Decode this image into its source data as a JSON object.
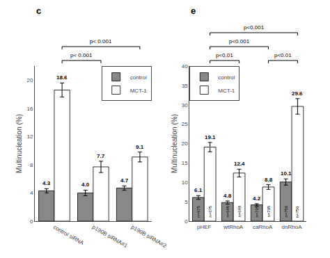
{
  "chart_data": [
    {
      "type": "bar",
      "title": "c",
      "categories": [
        "control siRNA",
        "p190B siRNA#1",
        "p190B siRNA#2"
      ],
      "series": [
        {
          "name": "control",
          "color": "#888888",
          "values": [
            4.3,
            4.0,
            4.7
          ],
          "value_labels": [
            "4.3",
            "4.0",
            "4.7"
          ],
          "errors": [
            0.3,
            0.4,
            0.3
          ]
        },
        {
          "name": "MCT-1",
          "color": "#ffffff",
          "values": [
            18.6,
            7.7,
            9.1
          ],
          "errors": [
            1.0,
            0.8,
            0.7
          ]
        }
      ],
      "ylabel": "Multinucleation (%)",
      "ylim": [
        0,
        22
      ],
      "yticks": [
        0,
        4,
        8,
        12,
        16,
        20
      ],
      "grid": false,
      "legend": "upper right",
      "data_labels": true,
      "annotations": [
        {
          "text": "p< 0.001",
          "from": "control siRNA",
          "to": "p190B siRNA#1",
          "series": "MCT-1"
        },
        {
          "text": "p< 0.001",
          "from": "control siRNA",
          "to": "p190B siRNA#2",
          "series": "MCT-1"
        }
      ]
    },
    {
      "type": "bar",
      "title": "e",
      "categories": [
        "pHEF",
        "wtRhoA",
        "caRhoA",
        "dnRhoA"
      ],
      "series": [
        {
          "name": "control",
          "color": "#888888",
          "values": [
            6.1,
            4.8,
            4.2,
            10.1
          ],
          "errors": [
            0.5,
            0.4,
            0.3,
            0.8
          ],
          "n_labels": [
            "n=675",
            "n=648",
            "n=795",
            "n=756"
          ]
        },
        {
          "name": "MCT-1",
          "color": "#ffffff",
          "values": [
            19.1,
            12.4,
            8.8,
            29.6
          ],
          "errors": [
            1.2,
            1.0,
            0.6,
            2.0
          ],
          "n_labels": [
            "n=675",
            "n=648",
            "n=795",
            "n=756"
          ]
        }
      ],
      "ylabel": "Multinucleation (%)",
      "ylim": [
        0,
        40
      ],
      "yticks": [
        0,
        5,
        10,
        15,
        20,
        25,
        30,
        35,
        40
      ],
      "grid": false,
      "legend": "upper left",
      "data_labels": true,
      "annotations": [
        {
          "text": "p<0.001",
          "from": "pHEF",
          "to": "dnRhoA",
          "series": "MCT-1"
        },
        {
          "text": "p<0.001",
          "from": "pHEF",
          "to": "caRhoA",
          "series": "MCT-1"
        },
        {
          "text": "p<0.01",
          "from": "pHEF",
          "to": "wtRhoA",
          "series": "MCT-1"
        },
        {
          "text": "p<0.01",
          "from": "caRhoA",
          "to": "dnRhoA",
          "series": "MCT-1"
        }
      ]
    }
  ]
}
